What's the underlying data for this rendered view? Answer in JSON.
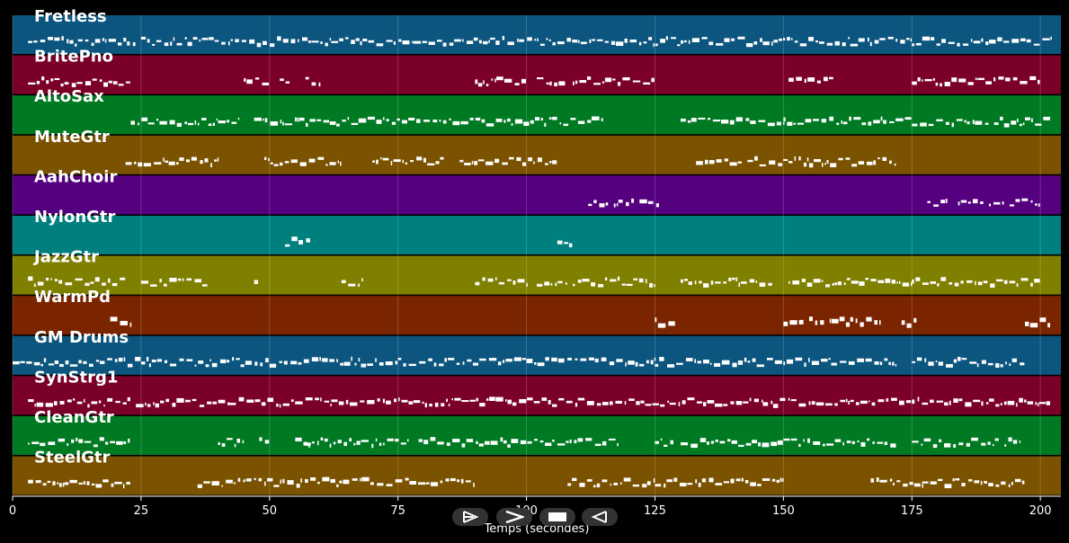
{
  "tracks": [
    {
      "name": "Fretless",
      "color": "#0b557f"
    },
    {
      "name": "BritePno",
      "color": "#7b0028"
    },
    {
      "name": "AltoSax",
      "color": "#007a22"
    },
    {
      "name": "MuteGtr",
      "color": "#7a5200"
    },
    {
      "name": "AahChoir",
      "color": "#55007f"
    },
    {
      "name": "NylonGtr",
      "color": "#007f7f"
    },
    {
      "name": "JazzGtr",
      "color": "#7f7f00"
    },
    {
      "name": "WarmPd",
      "color": "#7a2500"
    },
    {
      "name": "GM Drums",
      "color": "#0b557f"
    },
    {
      "name": "SynStrg1",
      "color": "#7b0028"
    },
    {
      "name": "CleanGtr",
      "color": "#007a22"
    },
    {
      "name": "SteelGtr",
      "color": "#7a5200"
    }
  ],
  "x_axis": {
    "label": "Temps (secondes)",
    "range": [
      0,
      204
    ],
    "ticks": [
      "0",
      "25",
      "50",
      "75",
      "100",
      "125",
      "150",
      "175",
      "200"
    ],
    "tick_values": [
      0,
      25,
      50,
      75,
      100,
      125,
      150,
      175,
      200
    ]
  },
  "note_segments": [
    [
      [
        3,
        24
      ],
      [
        25,
        42
      ],
      [
        42,
        62
      ],
      [
        62,
        78
      ],
      [
        78,
        94
      ],
      [
        94,
        110
      ],
      [
        110,
        126
      ],
      [
        126,
        146
      ],
      [
        146,
        163
      ],
      [
        163,
        175
      ],
      [
        175,
        190
      ],
      [
        190,
        202
      ]
    ],
    [
      [
        3,
        23
      ],
      [
        45,
        50
      ],
      [
        52,
        54
      ],
      [
        57,
        60
      ],
      [
        90,
        100
      ],
      [
        102,
        108
      ],
      [
        109,
        125
      ],
      [
        151,
        160
      ],
      [
        175,
        200
      ]
    ],
    [
      [
        23,
        44
      ],
      [
        47,
        63
      ],
      [
        63,
        77
      ],
      [
        77,
        97
      ],
      [
        97,
        105
      ],
      [
        105,
        115
      ],
      [
        130,
        150
      ],
      [
        150,
        175
      ],
      [
        175,
        190
      ],
      [
        191,
        197
      ],
      [
        197,
        202
      ]
    ],
    [
      [
        22,
        40
      ],
      [
        49,
        64
      ],
      [
        70,
        84
      ],
      [
        87,
        105
      ],
      [
        105,
        106
      ],
      [
        133,
        142
      ],
      [
        143,
        155
      ],
      [
        155,
        172
      ]
    ],
    [
      [
        112,
        116
      ],
      [
        117,
        121
      ],
      [
        122,
        126
      ],
      [
        178,
        182
      ],
      [
        184,
        189
      ],
      [
        190,
        193
      ],
      [
        194,
        200
      ]
    ],
    [
      [
        53,
        58
      ],
      [
        106,
        109
      ]
    ],
    [
      [
        3,
        22
      ],
      [
        25,
        38
      ],
      [
        47,
        48
      ],
      [
        64,
        68
      ],
      [
        90,
        100
      ],
      [
        102,
        108
      ],
      [
        109,
        125
      ],
      [
        130,
        140
      ],
      [
        140,
        148
      ],
      [
        151,
        160
      ],
      [
        160,
        175
      ],
      [
        175,
        200
      ]
    ],
    [
      [
        19,
        23
      ],
      [
        125,
        129
      ],
      [
        150,
        154
      ],
      [
        155,
        158
      ],
      [
        159,
        163
      ],
      [
        163,
        169
      ],
      [
        173,
        176
      ],
      [
        197,
        202
      ]
    ],
    [
      [
        0,
        25
      ],
      [
        25,
        50
      ],
      [
        50,
        75
      ],
      [
        75,
        100
      ],
      [
        100,
        125
      ],
      [
        125,
        150
      ],
      [
        150,
        172
      ],
      [
        175,
        197
      ]
    ],
    [
      [
        3,
        23
      ],
      [
        24,
        42
      ],
      [
        42,
        62
      ],
      [
        62,
        78
      ],
      [
        78,
        94
      ],
      [
        94,
        110
      ],
      [
        110,
        126
      ],
      [
        126,
        146
      ],
      [
        146,
        163
      ],
      [
        163,
        175
      ],
      [
        175,
        190
      ],
      [
        190,
        202
      ]
    ],
    [
      [
        3,
        23
      ],
      [
        40,
        45
      ],
      [
        48,
        50
      ],
      [
        55,
        58
      ],
      [
        57,
        77
      ],
      [
        79,
        97
      ],
      [
        97,
        105
      ],
      [
        105,
        118
      ],
      [
        125,
        129
      ],
      [
        130,
        150
      ],
      [
        150,
        172
      ],
      [
        175,
        192
      ],
      [
        193,
        196
      ]
    ],
    [
      [
        3,
        23
      ],
      [
        36,
        45
      ],
      [
        45,
        63
      ],
      [
        63,
        90
      ],
      [
        108,
        125
      ],
      [
        125,
        150
      ],
      [
        167,
        177
      ],
      [
        177,
        197
      ]
    ]
  ]
}
